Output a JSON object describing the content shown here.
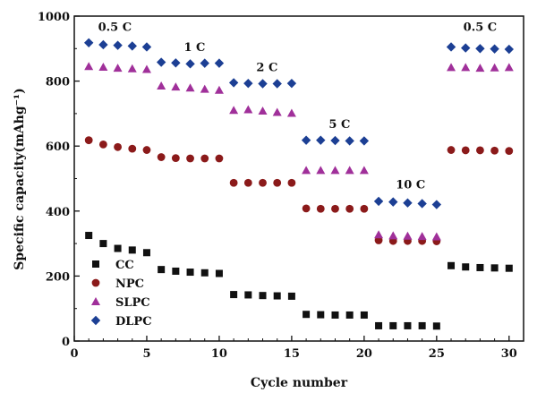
{
  "chart_data": {
    "type": "scatter",
    "xlabel": "Cycle number",
    "ylabel": "Specific capacity(mAhg⁻¹)",
    "xlim": [
      0,
      31
    ],
    "ylim": [
      0,
      1000
    ],
    "xticks": [
      0,
      5,
      10,
      15,
      20,
      25,
      30
    ],
    "yticks": [
      0,
      200,
      400,
      600,
      800,
      1000
    ],
    "legend_position": "bottom-left",
    "rate_labels": [
      {
        "text": "0.5 C",
        "x": 2.8,
        "y": 955
      },
      {
        "text": "1 C",
        "x": 8.3,
        "y": 892
      },
      {
        "text": "2 C",
        "x": 13.3,
        "y": 830
      },
      {
        "text": "5 C",
        "x": 18.3,
        "y": 655
      },
      {
        "text": "10 C",
        "x": 23.2,
        "y": 470
      },
      {
        "text": "0.5 C",
        "x": 28.0,
        "y": 955
      }
    ],
    "series": [
      {
        "name": "CC",
        "marker": "square",
        "color": "#111111",
        "x": [
          1,
          2,
          3,
          4,
          5,
          6,
          7,
          8,
          9,
          10,
          11,
          12,
          13,
          14,
          15,
          16,
          17,
          18,
          19,
          20,
          21,
          22,
          23,
          24,
          25,
          26,
          27,
          28,
          29,
          30
        ],
        "values": [
          325,
          300,
          285,
          280,
          272,
          220,
          215,
          212,
          210,
          208,
          143,
          142,
          140,
          139,
          138,
          82,
          81,
          80,
          80,
          80,
          47,
          47,
          47,
          47,
          46,
          232,
          228,
          226,
          225,
          224
        ]
      },
      {
        "name": "NPC",
        "marker": "circle",
        "color": "#8b1a1a",
        "x": [
          1,
          2,
          3,
          4,
          5,
          6,
          7,
          8,
          9,
          10,
          11,
          12,
          13,
          14,
          15,
          16,
          17,
          18,
          19,
          20,
          21,
          22,
          23,
          24,
          25,
          26,
          27,
          28,
          29,
          30
        ],
        "values": [
          618,
          605,
          597,
          592,
          588,
          566,
          563,
          562,
          562,
          562,
          487,
          487,
          487,
          487,
          487,
          408,
          407,
          407,
          407,
          407,
          310,
          308,
          308,
          308,
          307,
          588,
          587,
          587,
          586,
          585
        ]
      },
      {
        "name": "SLPC",
        "marker": "triangle",
        "color": "#a0309a",
        "x": [
          1,
          2,
          3,
          4,
          5,
          6,
          7,
          8,
          9,
          10,
          11,
          12,
          13,
          14,
          15,
          16,
          17,
          18,
          19,
          20,
          21,
          22,
          23,
          24,
          25,
          26,
          27,
          28,
          29,
          30
        ],
        "values": [
          845,
          843,
          840,
          838,
          836,
          785,
          782,
          779,
          775,
          772,
          710,
          712,
          708,
          704,
          701,
          525,
          525,
          525,
          525,
          525,
          327,
          324,
          323,
          322,
          321,
          842,
          842,
          840,
          841,
          842
        ]
      },
      {
        "name": "DLPC",
        "marker": "diamond",
        "color": "#1c3f94",
        "x": [
          1,
          2,
          3,
          4,
          5,
          6,
          7,
          8,
          9,
          10,
          11,
          12,
          13,
          14,
          15,
          16,
          17,
          18,
          19,
          20,
          21,
          22,
          23,
          24,
          25,
          26,
          27,
          28,
          29,
          30
        ],
        "values": [
          918,
          912,
          910,
          908,
          905,
          858,
          856,
          853,
          855,
          855,
          795,
          793,
          792,
          792,
          793,
          618,
          618,
          617,
          616,
          616,
          430,
          428,
          425,
          423,
          420,
          905,
          902,
          900,
          899,
          898
        ]
      }
    ]
  }
}
